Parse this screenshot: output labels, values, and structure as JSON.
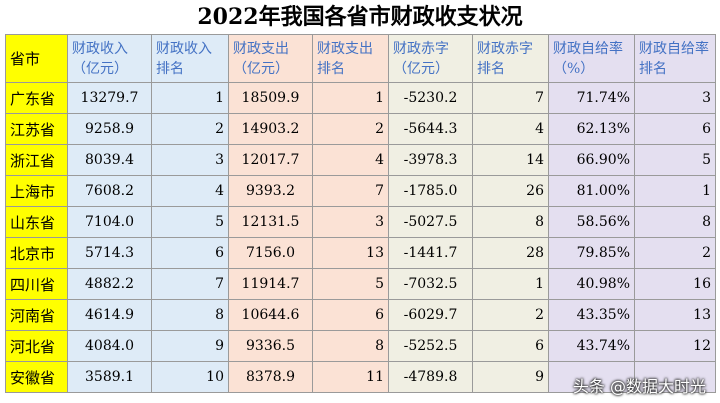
{
  "title": "2022年我国各省市财政收支状况",
  "headers": [
    "省市",
    "财政收入（亿元）",
    "财政收入排名",
    "财政支出（亿元）",
    "财政支出排名",
    "财政赤字（亿元）",
    "财政赤字排名",
    "财政自给率（%）",
    "财政自给率排名"
  ],
  "rows": [
    [
      "广东省",
      "13279.7",
      "1",
      "18509.9",
      "1",
      "-5230.2",
      "7",
      "71.74%",
      "3"
    ],
    [
      "江苏省",
      "9258.9",
      "2",
      "14903.2",
      "2",
      "-5644.3",
      "4",
      "62.13%",
      "6"
    ],
    [
      "浙江省",
      "8039.4",
      "3",
      "12017.7",
      "4",
      "-3978.3",
      "14",
      "66.90%",
      "5"
    ],
    [
      "上海市",
      "7608.2",
      "4",
      "9393.2",
      "7",
      "-1785.0",
      "26",
      "81.00%",
      "1"
    ],
    [
      "山东省",
      "7104.0",
      "5",
      "12131.5",
      "3",
      "-5027.5",
      "8",
      "58.56%",
      "8"
    ],
    [
      "北京市",
      "5714.3",
      "6",
      "7156.0",
      "13",
      "-1441.7",
      "28",
      "79.85%",
      "2"
    ],
    [
      "四川省",
      "4882.2",
      "7",
      "11914.7",
      "5",
      "-7032.5",
      "1",
      "40.98%",
      "16"
    ],
    [
      "河南省",
      "4614.9",
      "8",
      "10644.6",
      "6",
      "-6029.7",
      "2",
      "43.35%",
      "13"
    ],
    [
      "河北省",
      "4084.0",
      "9",
      "9336.5",
      "8",
      "-5252.5",
      "6",
      "43.74%",
      "12"
    ],
    [
      "安徽省",
      "3589.1",
      "10",
      "8378.9",
      "11",
      "-4789.8",
      "9",
      "",
      ""
    ]
  ],
  "watermark": "头条 @数据大时光"
}
